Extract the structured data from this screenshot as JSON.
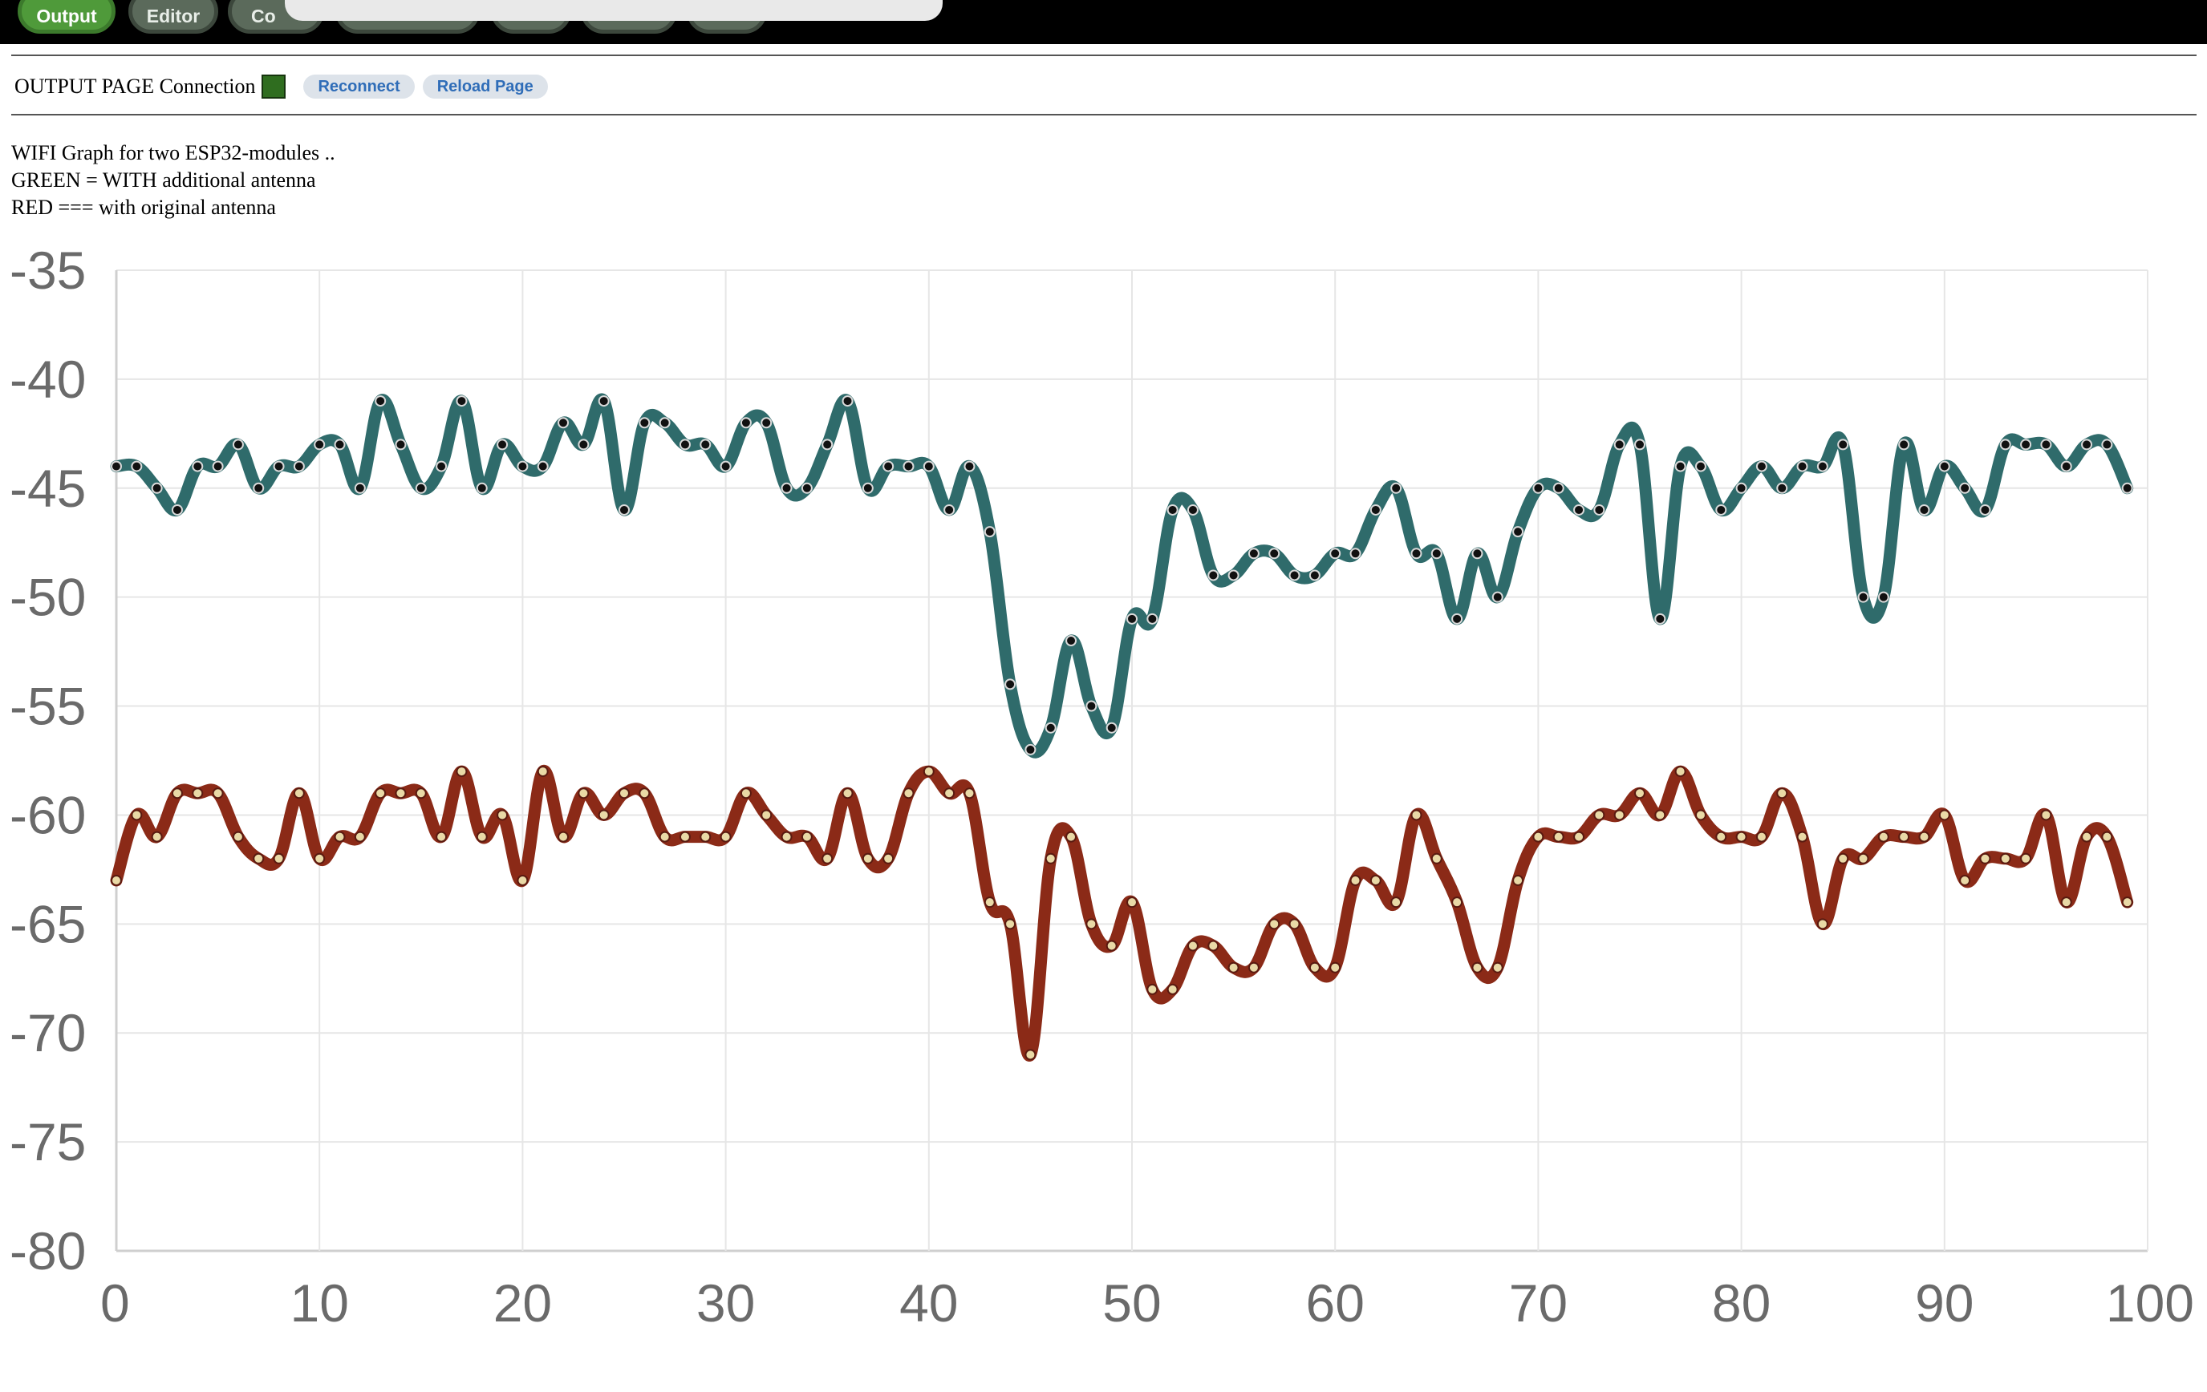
{
  "header": {
    "tabs": [
      {
        "label": "Output",
        "active": true
      },
      {
        "label": "Editor",
        "active": false
      },
      {
        "label": "Co",
        "active": false
      }
    ]
  },
  "connection": {
    "label": "OUTPUT PAGE Connection",
    "status_color": "#2f6d1f",
    "reconnect_label": "Reconnect",
    "reload_label": "Reload Page"
  },
  "description": {
    "lines": [
      "WIFI Graph for two ESP32-modules ..",
      "GREEN = WITH additional antenna",
      "RED === with original antenna"
    ]
  },
  "chart_data": {
    "type": "line",
    "title": "",
    "xlabel": "",
    "ylabel": "",
    "xlim": [
      0,
      100
    ],
    "ylim": [
      -80,
      -35
    ],
    "xticks": [
      0,
      10,
      20,
      30,
      40,
      50,
      60,
      70,
      80,
      90,
      100
    ],
    "yticks": [
      -35,
      -40,
      -45,
      -50,
      -55,
      -60,
      -65,
      -70,
      -75,
      -80
    ],
    "grid": true,
    "x": [
      0,
      1,
      2,
      3,
      4,
      5,
      6,
      7,
      8,
      9,
      10,
      11,
      12,
      13,
      14,
      15,
      16,
      17,
      18,
      19,
      20,
      21,
      22,
      23,
      24,
      25,
      26,
      27,
      28,
      29,
      30,
      31,
      32,
      33,
      34,
      35,
      36,
      37,
      38,
      39,
      40,
      41,
      42,
      43,
      44,
      45,
      46,
      47,
      48,
      49,
      50,
      51,
      52,
      53,
      54,
      55,
      56,
      57,
      58,
      59,
      60,
      61,
      62,
      63,
      64,
      65,
      66,
      67,
      68,
      69,
      70,
      71,
      72,
      73,
      74,
      75,
      76,
      77,
      78,
      79,
      80,
      81,
      82,
      83,
      84,
      85,
      86,
      87,
      88,
      89,
      90,
      91,
      92,
      93,
      94,
      95,
      96,
      97,
      98,
      99
    ],
    "series": [
      {
        "color": "#2f6b6b",
        "values": [
          -44,
          -44,
          -45,
          -46,
          -44,
          -44,
          -43,
          -45,
          -44,
          -44,
          -43,
          -43,
          -45,
          -41,
          -43,
          -45,
          -44,
          -41,
          -45,
          -43,
          -44,
          -44,
          -42,
          -43,
          -41,
          -46,
          -42,
          -42,
          -43,
          -43,
          -44,
          -42,
          -42,
          -45,
          -45,
          -43,
          -41,
          -45,
          -44,
          -44,
          -44,
          -46,
          -44,
          -47,
          -54,
          -57,
          -56,
          -52,
          -55,
          -56,
          -51,
          -51,
          -46,
          -46,
          -49,
          -49,
          -48,
          -48,
          -49,
          -49,
          -48,
          -48,
          -46,
          -45,
          -48,
          -48,
          -51,
          -48,
          -50,
          -47,
          -45,
          -45,
          -46,
          -46,
          -43,
          -43,
          -51,
          -44,
          -44,
          -46,
          -45,
          -44,
          -45,
          -44,
          -44,
          -43,
          -50,
          -50,
          -43,
          -46,
          -44,
          -45,
          -46,
          -43,
          -43,
          -43,
          -44,
          -43,
          -43,
          -45
        ]
      },
      {
        "color": "#8b2a17",
        "values": [
          -63,
          -60,
          -61,
          -59,
          -59,
          -59,
          -61,
          -62,
          -62,
          -59,
          -62,
          -61,
          -61,
          -59,
          -59,
          -59,
          -61,
          -58,
          -61,
          -60,
          -63,
          -58,
          -61,
          -59,
          -60,
          -59,
          -59,
          -61,
          -61,
          -61,
          -61,
          -59,
          -60,
          -61,
          -61,
          -62,
          -59,
          -62,
          -62,
          -59,
          -58,
          -59,
          -59,
          -64,
          -65,
          -71,
          -62,
          -61,
          -65,
          -66,
          -64,
          -68,
          -68,
          -66,
          -66,
          -67,
          -67,
          -65,
          -65,
          -67,
          -67,
          -63,
          -63,
          -64,
          -60,
          -62,
          -64,
          -67,
          -67,
          -63,
          -61,
          -61,
          -61,
          -60,
          -60,
          -59,
          -60,
          -58,
          -60,
          -61,
          -61,
          -61,
          -59,
          -61,
          -65,
          -62,
          -62,
          -61,
          -61,
          -61,
          -60,
          -63,
          -62,
          -62,
          -62,
          -60,
          -64,
          -61,
          -61,
          -64
        ]
      }
    ]
  }
}
